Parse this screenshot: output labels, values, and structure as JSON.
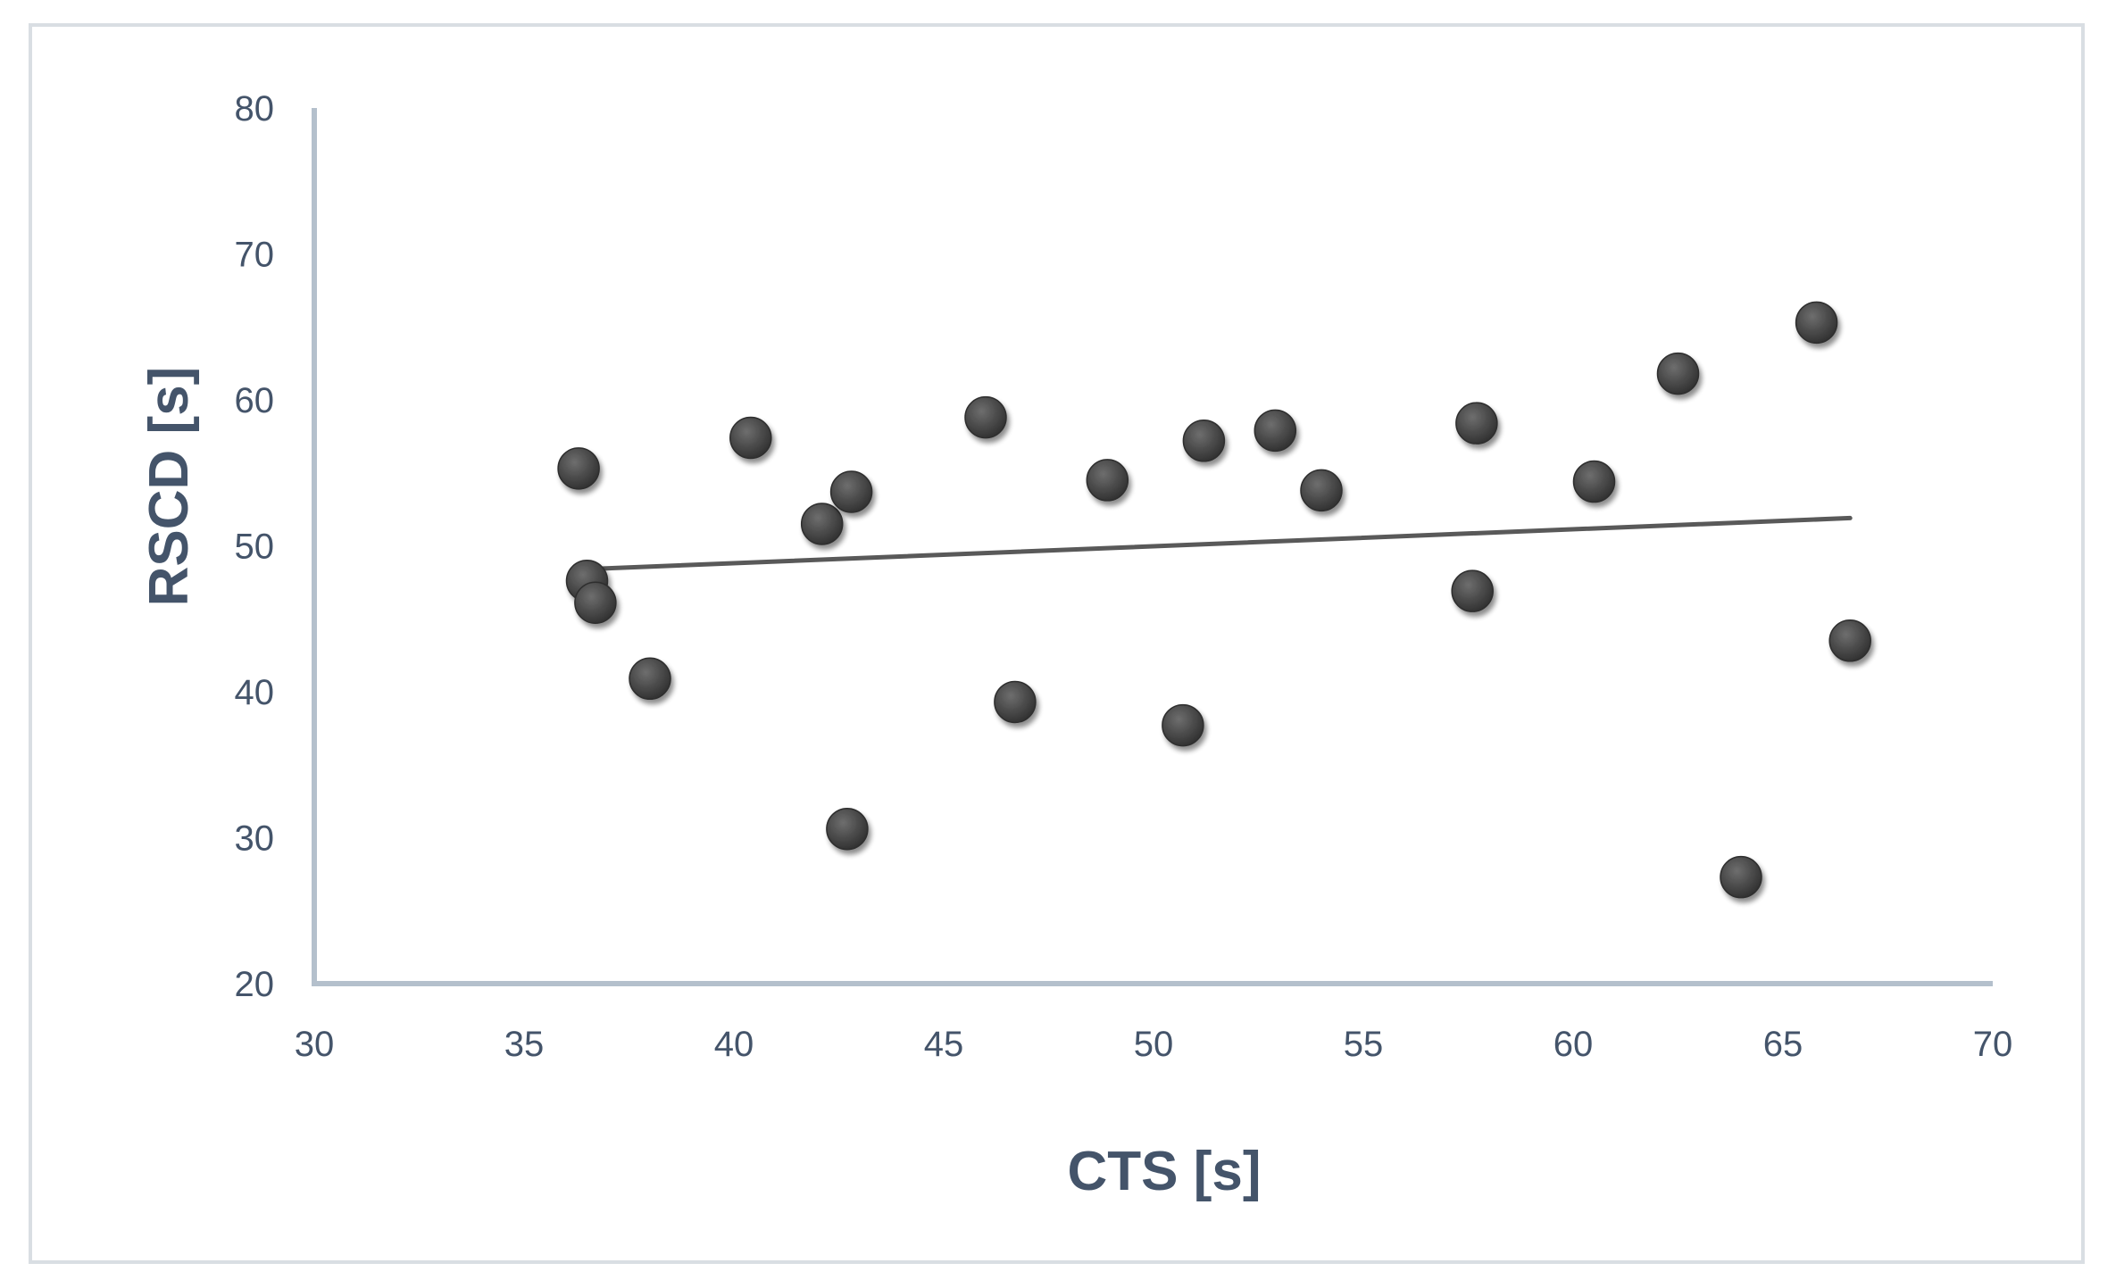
{
  "chart_data": {
    "type": "scatter",
    "title": "",
    "xlabel": "CTS [s]",
    "ylabel": "RSCD [s]",
    "xlim": [
      30,
      70
    ],
    "ylim": [
      20,
      80
    ],
    "xticks": [
      30,
      35,
      40,
      45,
      50,
      55,
      60,
      65,
      70
    ],
    "yticks": [
      20,
      30,
      40,
      50,
      60,
      70,
      80
    ],
    "grid": false,
    "legend": "none",
    "series": [
      {
        "color": "#4d4d4d",
        "points": [
          {
            "x": 36.3,
            "y": 55.3
          },
          {
            "x": 36.5,
            "y": 47.6
          },
          {
            "x": 36.7,
            "y": 46.1
          },
          {
            "x": 38.0,
            "y": 40.9
          },
          {
            "x": 40.4,
            "y": 57.4
          },
          {
            "x": 42.1,
            "y": 51.5
          },
          {
            "x": 42.8,
            "y": 53.7
          },
          {
            "x": 42.7,
            "y": 30.6
          },
          {
            "x": 46.0,
            "y": 58.8
          },
          {
            "x": 46.7,
            "y": 39.3
          },
          {
            "x": 48.9,
            "y": 54.5
          },
          {
            "x": 50.7,
            "y": 37.7
          },
          {
            "x": 51.2,
            "y": 57.2
          },
          {
            "x": 52.9,
            "y": 57.9
          },
          {
            "x": 54.0,
            "y": 53.8
          },
          {
            "x": 57.6,
            "y": 46.9
          },
          {
            "x": 57.7,
            "y": 58.4
          },
          {
            "x": 60.5,
            "y": 54.4
          },
          {
            "x": 62.5,
            "y": 61.8
          },
          {
            "x": 64.0,
            "y": 27.3
          },
          {
            "x": 65.8,
            "y": 65.3
          },
          {
            "x": 66.6,
            "y": 43.5
          }
        ]
      }
    ],
    "trendline": {
      "type": "linear",
      "color": "#595959",
      "x_start": 36.5,
      "y_start": 48.4,
      "x_end": 66.6,
      "y_end": 51.9
    },
    "axis_color": "#b4c0cc",
    "label_color": "#44546a"
  }
}
